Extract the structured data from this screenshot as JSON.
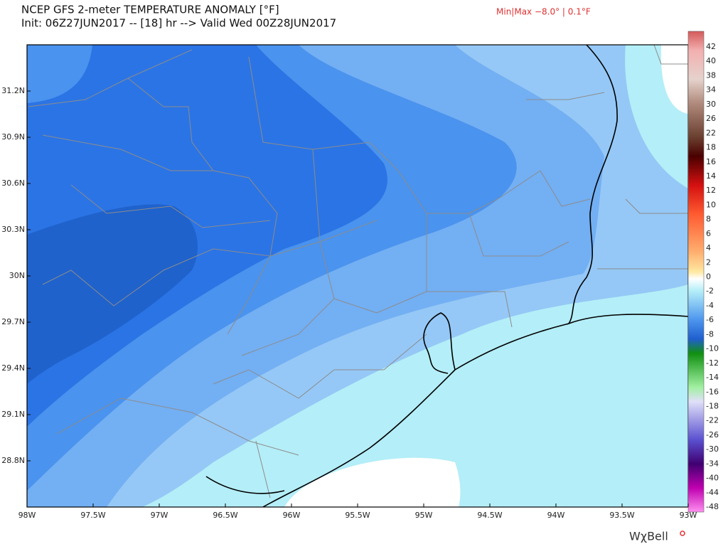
{
  "header": {
    "title": "NCEP GFS 2-meter TEMPERATURE ANOMALY [°F]",
    "subtitle": "Init: 06Z27JUN2017 -- [18] hr --> Valid Wed 00Z28JUN2017",
    "minmax": "Min|Max −8.0° | 0.1°F"
  },
  "map": {
    "lat_labels": [
      "31.2N",
      "30.9N",
      "30.6N",
      "30.3N",
      "30N",
      "29.7N",
      "29.4N",
      "29.1N",
      "28.8N"
    ],
    "lon_labels": [
      "98W",
      "97.5W",
      "97W",
      "96.5W",
      "96W",
      "95.5W",
      "95W",
      "94.5W",
      "94W",
      "93.5W",
      "93W"
    ]
  },
  "colorbar": {
    "labels": [
      42,
      40,
      38,
      34,
      30,
      26,
      22,
      18,
      16,
      14,
      12,
      10,
      8,
      6,
      4,
      2,
      0,
      -2,
      -4,
      -6,
      -8,
      -10,
      -12,
      -14,
      -16,
      -18,
      -22,
      -26,
      -30,
      -34,
      -40,
      -44,
      -48
    ]
  },
  "brand": "WχBell"
}
